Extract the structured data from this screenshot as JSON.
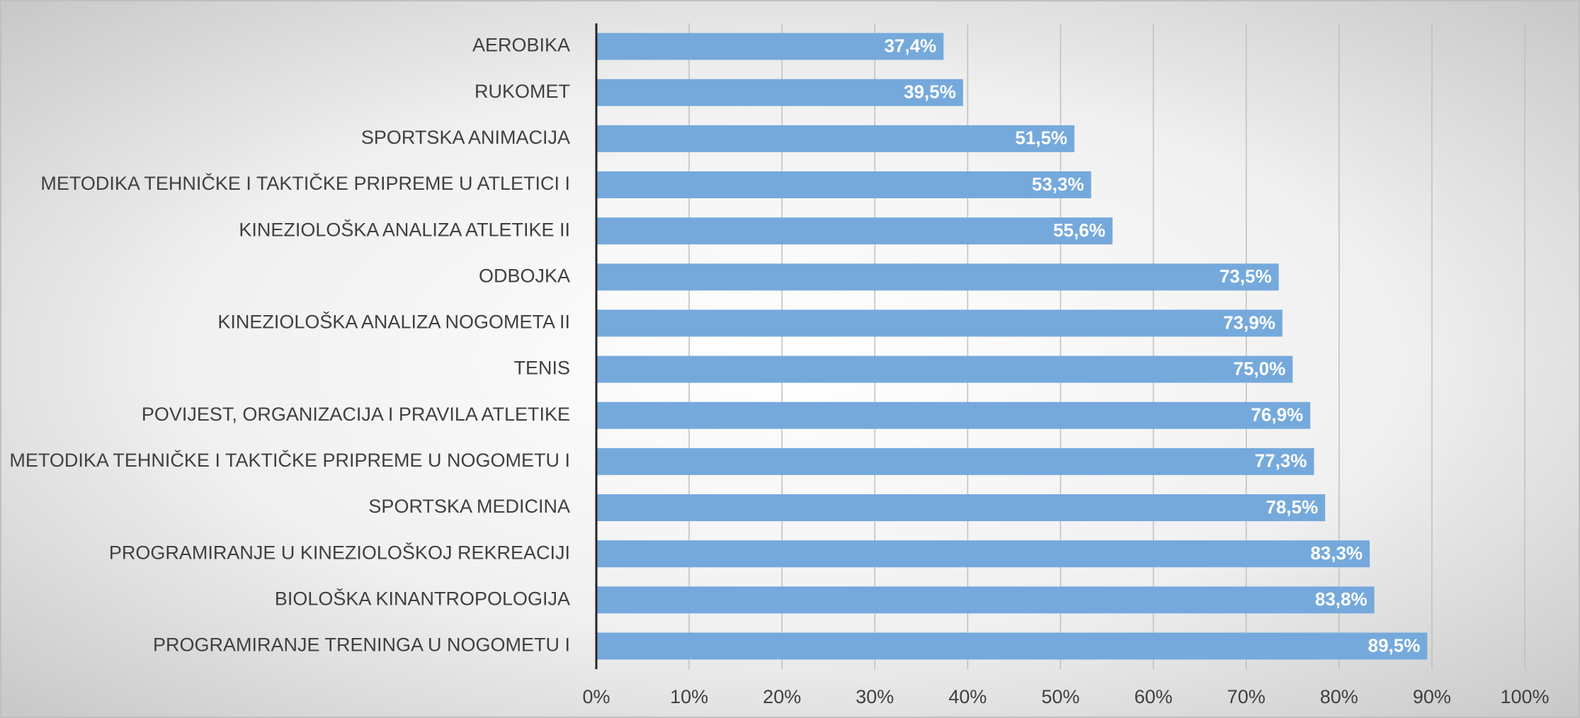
{
  "chart_data": {
    "type": "bar",
    "orientation": "horizontal",
    "categories": [
      "AEROBIKA",
      "RUKOMET",
      "SPORTSKA ANIMACIJA",
      "METODIKA TEHNIČKE I TAKTIČKE PRIPREME U ATLETICI I",
      "KINEZIOLOŠKA ANALIZA ATLETIKE II",
      "ODBOJKA",
      "KINEZIOLOŠKA ANALIZA NOGOMETA II",
      "TENIS",
      "POVIJEST, ORGANIZACIJA I PRAVILA ATLETIKE",
      "METODIKA TEHNIČKE I TAKTIČKE PRIPREME U NOGOMETU I",
      "SPORTSKA MEDICINA",
      "PROGRAMIRANJE U KINEZIOLOŠKOJ REKREACIJI",
      "BIOLOŠKA KINANTROPOLOGIJA",
      "PROGRAMIRANJE TRENINGA U NOGOMETU I"
    ],
    "values": [
      37.4,
      39.5,
      51.5,
      53.3,
      55.6,
      73.5,
      73.9,
      75.0,
      76.9,
      77.3,
      78.5,
      83.3,
      83.8,
      89.5
    ],
    "value_labels": [
      "37,4%",
      "39,5%",
      "51,5%",
      "53,3%",
      "55,6%",
      "73,5%",
      "73,9%",
      "75,0%",
      "76,9%",
      "77,3%",
      "78,5%",
      "83,3%",
      "83,8%",
      "89,5%"
    ],
    "color": "#75a9dc",
    "xlim": [
      0,
      100
    ],
    "xticks": [
      {
        "value": 0,
        "label": "0%"
      },
      {
        "value": 10,
        "label": "10%"
      },
      {
        "value": 20,
        "label": "20%"
      },
      {
        "value": 30,
        "label": "30%"
      },
      {
        "value": 40,
        "label": "40%"
      },
      {
        "value": 50,
        "label": "50%"
      },
      {
        "value": 60,
        "label": "60%"
      },
      {
        "value": 70,
        "label": "70%"
      },
      {
        "value": 80,
        "label": "80%"
      },
      {
        "value": 90,
        "label": "90%"
      },
      {
        "value": 100,
        "label": "100%"
      }
    ],
    "grid": true
  }
}
